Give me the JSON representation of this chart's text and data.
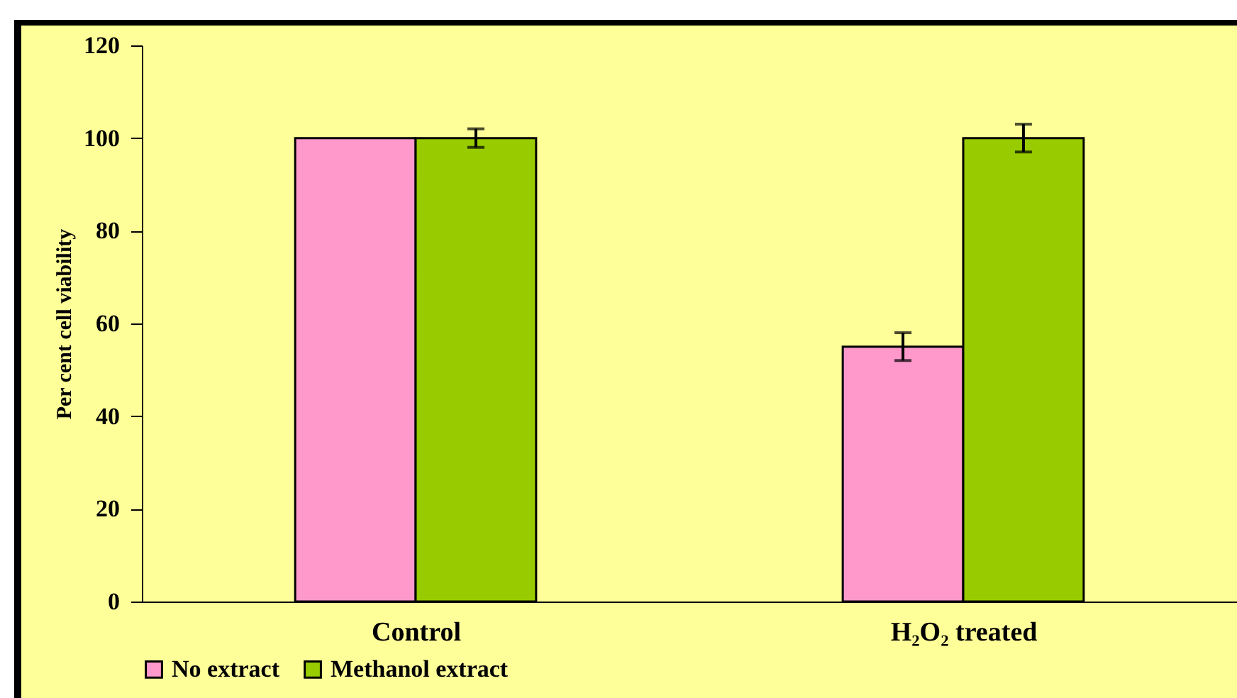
{
  "chart_data": {
    "type": "bar",
    "ylabel": "Per cent cell viability",
    "categories": [
      "Control",
      "H₂O₂ treated"
    ],
    "series": [
      {
        "name": "No extract",
        "color": "#ff99cc",
        "values": [
          100,
          55
        ],
        "errors": [
          null,
          3
        ]
      },
      {
        "name": "Methanol extract",
        "color": "#99cc00",
        "values": [
          100,
          100
        ],
        "errors": [
          2,
          3
        ]
      }
    ],
    "ylim": [
      0,
      120
    ],
    "yticks": [
      0,
      20,
      40,
      60,
      80,
      100,
      120
    ],
    "grid": false,
    "legend": "bottom"
  }
}
